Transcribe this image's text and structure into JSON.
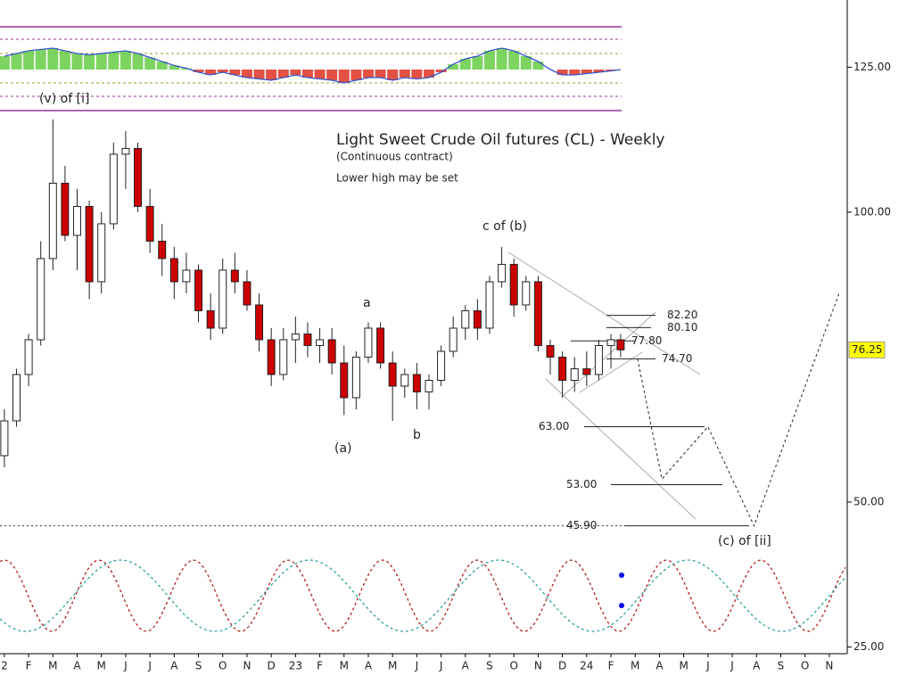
{
  "chart_data": {
    "type": "candlestick",
    "title": "Light Sweet Crude Oil futures (CL) - Weekly",
    "subtitle": "(Continuous contract)",
    "note": "Lower high may be set",
    "xlim": [
      -0.18,
      34.74
    ],
    "ylim": [
      23.85,
      136.6
    ],
    "xticks": [
      {
        "value": 0,
        "label": "2"
      },
      {
        "value": 1,
        "label": "F"
      },
      {
        "value": 2,
        "label": "M"
      },
      {
        "value": 3,
        "label": "A"
      },
      {
        "value": 4,
        "label": "M"
      },
      {
        "value": 5,
        "label": "J"
      },
      {
        "value": 6,
        "label": "J"
      },
      {
        "value": 7,
        "label": "A"
      },
      {
        "value": 8,
        "label": "S"
      },
      {
        "value": 9,
        "label": "O"
      },
      {
        "value": 10,
        "label": "N"
      },
      {
        "value": 11,
        "label": "D"
      },
      {
        "value": 12,
        "label": "23"
      },
      {
        "value": 13,
        "label": "F"
      },
      {
        "value": 14,
        "label": "M"
      },
      {
        "value": 15,
        "label": "A"
      },
      {
        "value": 16,
        "label": "M"
      },
      {
        "value": 17,
        "label": "J"
      },
      {
        "value": 18,
        "label": "J"
      },
      {
        "value": 19,
        "label": "A"
      },
      {
        "value": 20,
        "label": "S"
      },
      {
        "value": 21,
        "label": "O"
      },
      {
        "value": 22,
        "label": "N"
      },
      {
        "value": 23,
        "label": "D"
      },
      {
        "value": 24,
        "label": "24"
      },
      {
        "value": 25,
        "label": "F"
      },
      {
        "value": 26,
        "label": "M"
      },
      {
        "value": 27,
        "label": "A"
      },
      {
        "value": 28,
        "label": "M"
      },
      {
        "value": 29,
        "label": "J"
      },
      {
        "value": 30,
        "label": "J"
      },
      {
        "value": 31,
        "label": "A"
      },
      {
        "value": 32,
        "label": "S"
      },
      {
        "value": 33,
        "label": "O"
      },
      {
        "value": 34,
        "label": "N"
      }
    ],
    "yticks": [
      {
        "value": 125,
        "label": "125.00"
      },
      {
        "value": 100,
        "label": "100.00"
      },
      {
        "value": 50,
        "label": "50.00"
      },
      {
        "value": 25,
        "label": "25.00"
      }
    ],
    "x": [
      0,
      0.5,
      1,
      1.5,
      2,
      2.5,
      3,
      3.5,
      4,
      4.5,
      5,
      5.5,
      6,
      6.5,
      7,
      7.5,
      8,
      8.5,
      9,
      9.5,
      10,
      10.5,
      11,
      11.5,
      12,
      12.5,
      13,
      13.5,
      14,
      14.5,
      15,
      15.5,
      16,
      16.5,
      17,
      17.5,
      18,
      18.5,
      19,
      19.5,
      20,
      20.5,
      21,
      21.5,
      22,
      22.5,
      23,
      23.5,
      24,
      24.5,
      25,
      25.4
    ],
    "open": [
      58,
      64,
      72,
      78,
      92,
      105,
      96,
      101,
      88,
      98,
      110,
      111,
      101,
      95,
      92,
      88,
      90,
      83,
      80,
      90,
      88,
      84,
      78,
      72,
      78,
      79,
      77,
      78,
      74,
      68,
      75,
      80,
      74,
      70,
      72,
      69,
      71,
      76,
      80,
      83,
      80,
      88,
      91,
      84,
      88,
      77,
      75,
      71,
      73,
      72,
      77,
      78
    ],
    "high": [
      66,
      73,
      79,
      95,
      116,
      108,
      104,
      102,
      100,
      112,
      114,
      112,
      104,
      98,
      94,
      93,
      91,
      86,
      92,
      93,
      90,
      86,
      80,
      80,
      82,
      81,
      80,
      80,
      77,
      76,
      81,
      81,
      76,
      73,
      74,
      72,
      77,
      82,
      84,
      85,
      89,
      94,
      92,
      89,
      89,
      78,
      76,
      75,
      76,
      78,
      79,
      79
    ],
    "low": [
      56,
      63,
      70,
      77,
      90,
      95,
      90,
      85,
      86,
      97,
      104,
      100,
      93,
      89,
      85,
      86,
      81,
      78,
      79,
      86,
      83,
      76,
      70,
      71,
      74,
      75,
      74,
      72,
      65,
      66,
      74,
      73,
      64,
      68,
      66,
      66,
      70,
      75,
      78,
      78,
      79,
      87,
      82,
      83,
      76,
      72,
      68,
      69,
      70,
      71,
      73,
      75
    ],
    "close": [
      64,
      72,
      78,
      92,
      105,
      96,
      101,
      88,
      98,
      110,
      111,
      101,
      95,
      92,
      88,
      90,
      83,
      80,
      90,
      88,
      84,
      78,
      72,
      78,
      79,
      77,
      78,
      74,
      68,
      75,
      80,
      74,
      70,
      72,
      69,
      71,
      76,
      80,
      83,
      80,
      88,
      91,
      84,
      88,
      77,
      75,
      71,
      73,
      72,
      77,
      78,
      76.25
    ],
    "oscillator": [
      0.5,
      0.6,
      0.7,
      0.75,
      0.8,
      0.7,
      0.6,
      0.55,
      0.6,
      0.65,
      0.7,
      0.6,
      0.45,
      0.3,
      0.15,
      0.05,
      -0.1,
      -0.2,
      -0.1,
      -0.2,
      -0.3,
      -0.35,
      -0.4,
      -0.3,
      -0.2,
      -0.3,
      -0.35,
      -0.4,
      -0.5,
      -0.4,
      -0.3,
      -0.3,
      -0.4,
      -0.3,
      -0.35,
      -0.3,
      -0.1,
      0.2,
      0.4,
      0.5,
      0.7,
      0.8,
      0.7,
      0.5,
      0.3,
      0.0,
      -0.2,
      -0.2,
      -0.15,
      -0.1,
      -0.05,
      0.0
    ],
    "levels": [
      {
        "value": 82.2,
        "label": "82.20"
      },
      {
        "value": 80.1,
        "label": "80.10"
      },
      {
        "value": 77.8,
        "label": "77.80"
      },
      {
        "value": 74.7,
        "label": "74.70"
      },
      {
        "value": 63,
        "label": "63.00"
      },
      {
        "value": 53,
        "label": "53.00"
      },
      {
        "value": 45.9,
        "label": "45.90"
      }
    ],
    "projection": {
      "x": [
        26.1,
        27.1,
        29.0,
        30.9,
        34.4
      ],
      "values": [
        74.7,
        54,
        63,
        45.9,
        86
      ]
    },
    "annotations": [
      "(v) of [i]",
      "a",
      "(a)",
      "b",
      "c of (b)",
      "(c) of [ii]"
    ],
    "up_color": "#ffffff",
    "down_color": "#cc0000"
  }
}
